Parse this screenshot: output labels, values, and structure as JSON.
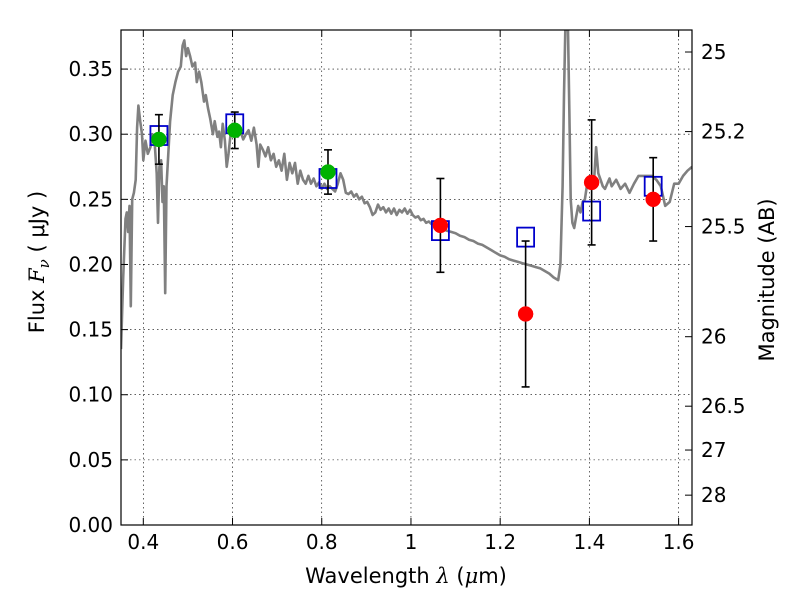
{
  "chart_data": {
    "type": "scatter",
    "title": "",
    "xlabel": {
      "prefix": "Wavelength ",
      "symbol": "λ",
      "unit_open": " (",
      "unit_mu": "μ",
      "unit_rest": "m)"
    },
    "ylabel": {
      "prefix": "Flux ",
      "symbol": "F",
      "subscript": "ν",
      "unit": " (  μJy )"
    },
    "ylabel_right": "Magnitude (AB)",
    "xlim": [
      0.35,
      1.63
    ],
    "ylim": [
      0.0,
      0.38
    ],
    "grid": true,
    "x_ticks": [
      {
        "value": 0.4,
        "label": "0.4"
      },
      {
        "value": 0.6,
        "label": "0.6"
      },
      {
        "value": 0.8,
        "label": "0.8"
      },
      {
        "value": 1.0,
        "label": "1"
      },
      {
        "value": 1.2,
        "label": "1.2"
      },
      {
        "value": 1.4,
        "label": "1.4"
      },
      {
        "value": 1.6,
        "label": "1.6"
      }
    ],
    "y_ticks": [
      {
        "value": 0.0,
        "label": "0.00"
      },
      {
        "value": 0.05,
        "label": "0.05"
      },
      {
        "value": 0.1,
        "label": "0.10"
      },
      {
        "value": 0.15,
        "label": "0.15"
      },
      {
        "value": 0.2,
        "label": "0.20"
      },
      {
        "value": 0.25,
        "label": "0.25"
      },
      {
        "value": 0.3,
        "label": "0.30"
      },
      {
        "value": 0.35,
        "label": "0.35"
      }
    ],
    "right_ticks": [
      {
        "mag": 25.0,
        "label": "25"
      },
      {
        "mag": 25.2,
        "label": "25.2"
      },
      {
        "mag": 25.5,
        "label": "25.5"
      },
      {
        "mag": 26.0,
        "label": "26"
      },
      {
        "mag": 26.5,
        "label": "26.5"
      },
      {
        "mag": 27.0,
        "label": "27"
      },
      {
        "mag": 28.0,
        "label": "28"
      }
    ],
    "model_spectrum": {
      "color": "#808080",
      "points": [
        [
          0.35,
          0.135
        ],
        [
          0.355,
          0.19
        ],
        [
          0.36,
          0.235
        ],
        [
          0.363,
          0.24
        ],
        [
          0.366,
          0.225
        ],
        [
          0.369,
          0.245
        ],
        [
          0.372,
          0.168
        ],
        [
          0.375,
          0.25
        ],
        [
          0.379,
          0.255
        ],
        [
          0.383,
          0.265
        ],
        [
          0.386,
          0.305
        ],
        [
          0.389,
          0.322
        ],
        [
          0.393,
          0.31
        ],
        [
          0.397,
          0.3
        ],
        [
          0.4,
          0.28
        ],
        [
          0.405,
          0.295
        ],
        [
          0.41,
          0.285
        ],
        [
          0.416,
          0.29
        ],
        [
          0.42,
          0.3
        ],
        [
          0.425,
          0.295
        ],
        [
          0.43,
          0.27
        ],
        [
          0.433,
          0.232
        ],
        [
          0.436,
          0.275
        ],
        [
          0.44,
          0.28
        ],
        [
          0.443,
          0.248
        ],
        [
          0.446,
          0.26
        ],
        [
          0.449,
          0.178
        ],
        [
          0.452,
          0.26
        ],
        [
          0.456,
          0.285
        ],
        [
          0.46,
          0.31
        ],
        [
          0.466,
          0.33
        ],
        [
          0.472,
          0.34
        ],
        [
          0.478,
          0.348
        ],
        [
          0.484,
          0.352
        ],
        [
          0.488,
          0.368
        ],
        [
          0.492,
          0.372
        ],
        [
          0.496,
          0.36
        ],
        [
          0.5,
          0.366
        ],
        [
          0.505,
          0.36
        ],
        [
          0.51,
          0.352
        ],
        [
          0.516,
          0.355
        ],
        [
          0.52,
          0.34
        ],
        [
          0.525,
          0.348
        ],
        [
          0.53,
          0.34
        ],
        [
          0.536,
          0.325
        ],
        [
          0.54,
          0.33
        ],
        [
          0.545,
          0.32
        ],
        [
          0.55,
          0.312
        ],
        [
          0.556,
          0.3
        ],
        [
          0.56,
          0.31
        ],
        [
          0.566,
          0.298
        ],
        [
          0.57,
          0.302
        ],
        [
          0.574,
          0.29
        ],
        [
          0.578,
          0.308
        ],
        [
          0.583,
          0.295
        ],
        [
          0.587,
          0.275
        ],
        [
          0.591,
          0.285
        ],
        [
          0.595,
          0.298
        ],
        [
          0.6,
          0.308
        ],
        [
          0.606,
          0.304
        ],
        [
          0.612,
          0.298
        ],
        [
          0.618,
          0.302
        ],
        [
          0.624,
          0.296
        ],
        [
          0.63,
          0.3
        ],
        [
          0.636,
          0.303
        ],
        [
          0.642,
          0.295
        ],
        [
          0.648,
          0.305
        ],
        [
          0.654,
          0.292
        ],
        [
          0.658,
          0.275
        ],
        [
          0.662,
          0.292
        ],
        [
          0.668,
          0.288
        ],
        [
          0.674,
          0.283
        ],
        [
          0.68,
          0.29
        ],
        [
          0.686,
          0.28
        ],
        [
          0.692,
          0.285
        ],
        [
          0.698,
          0.275
        ],
        [
          0.704,
          0.28
        ],
        [
          0.71,
          0.272
        ],
        [
          0.716,
          0.285
        ],
        [
          0.722,
          0.265
        ],
        [
          0.728,
          0.278
        ],
        [
          0.734,
          0.27
        ],
        [
          0.74,
          0.278
        ],
        [
          0.746,
          0.262
        ],
        [
          0.752,
          0.272
        ],
        [
          0.758,
          0.265
        ],
        [
          0.764,
          0.262
        ],
        [
          0.77,
          0.268
        ],
        [
          0.776,
          0.262
        ],
        [
          0.782,
          0.266
        ],
        [
          0.788,
          0.26
        ],
        [
          0.794,
          0.263
        ],
        [
          0.8,
          0.258
        ],
        [
          0.806,
          0.262
        ],
        [
          0.812,
          0.258
        ],
        [
          0.818,
          0.26
        ],
        [
          0.824,
          0.258
        ],
        [
          0.83,
          0.256
        ],
        [
          0.836,
          0.262
        ],
        [
          0.842,
          0.27
        ],
        [
          0.848,
          0.265
        ],
        [
          0.854,
          0.255
        ],
        [
          0.86,
          0.254
        ],
        [
          0.866,
          0.256
        ],
        [
          0.872,
          0.252
        ],
        [
          0.878,
          0.254
        ],
        [
          0.884,
          0.25
        ],
        [
          0.89,
          0.252
        ],
        [
          0.896,
          0.247
        ],
        [
          0.902,
          0.248
        ],
        [
          0.908,
          0.244
        ],
        [
          0.914,
          0.238
        ],
        [
          0.92,
          0.24
        ],
        [
          0.926,
          0.246
        ],
        [
          0.932,
          0.242
        ],
        [
          0.938,
          0.244
        ],
        [
          0.944,
          0.24
        ],
        [
          0.95,
          0.243
        ],
        [
          0.956,
          0.239
        ],
        [
          0.962,
          0.243
        ],
        [
          0.968,
          0.238
        ],
        [
          0.974,
          0.242
        ],
        [
          0.98,
          0.24
        ],
        [
          0.986,
          0.243
        ],
        [
          0.992,
          0.239
        ],
        [
          0.998,
          0.242
        ],
        [
          1.004,
          0.238
        ],
        [
          1.01,
          0.236
        ],
        [
          1.016,
          0.237
        ],
        [
          1.022,
          0.234
        ],
        [
          1.028,
          0.235
        ],
        [
          1.034,
          0.232
        ],
        [
          1.04,
          0.233
        ],
        [
          1.046,
          0.231
        ],
        [
          1.052,
          0.232
        ],
        [
          1.06,
          0.229
        ],
        [
          1.07,
          0.228
        ],
        [
          1.08,
          0.226
        ],
        [
          1.09,
          0.225
        ],
        [
          1.1,
          0.224
        ],
        [
          1.11,
          0.222
        ],
        [
          1.12,
          0.221
        ],
        [
          1.13,
          0.219
        ],
        [
          1.14,
          0.218
        ],
        [
          1.15,
          0.216
        ],
        [
          1.16,
          0.215
        ],
        [
          1.17,
          0.213
        ],
        [
          1.18,
          0.211
        ],
        [
          1.19,
          0.209
        ],
        [
          1.2,
          0.207
        ],
        [
          1.21,
          0.206
        ],
        [
          1.22,
          0.204
        ],
        [
          1.23,
          0.203
        ],
        [
          1.24,
          0.202
        ],
        [
          1.25,
          0.201
        ],
        [
          1.26,
          0.2
        ],
        [
          1.27,
          0.199
        ],
        [
          1.28,
          0.198
        ],
        [
          1.29,
          0.197
        ],
        [
          1.3,
          0.195
        ],
        [
          1.31,
          0.193
        ],
        [
          1.32,
          0.19
        ],
        [
          1.33,
          0.188
        ],
        [
          1.335,
          0.2
        ],
        [
          1.34,
          0.26
        ],
        [
          1.343,
          0.33
        ],
        [
          1.346,
          0.38
        ],
        [
          1.352,
          0.38
        ],
        [
          1.355,
          0.32
        ],
        [
          1.358,
          0.25
        ],
        [
          1.362,
          0.232
        ],
        [
          1.366,
          0.228
        ],
        [
          1.37,
          0.236
        ],
        [
          1.375,
          0.245
        ],
        [
          1.38,
          0.24
        ],
        [
          1.385,
          0.248
        ],
        [
          1.39,
          0.25
        ],
        [
          1.395,
          0.262
        ],
        [
          1.4,
          0.263
        ],
        [
          1.405,
          0.258
        ],
        [
          1.41,
          0.262
        ],
        [
          1.415,
          0.29
        ],
        [
          1.42,
          0.27
        ],
        [
          1.425,
          0.265
        ],
        [
          1.43,
          0.26
        ],
        [
          1.435,
          0.258
        ],
        [
          1.44,
          0.262
        ],
        [
          1.445,
          0.266
        ],
        [
          1.45,
          0.26
        ],
        [
          1.46,
          0.265
        ],
        [
          1.47,
          0.258
        ],
        [
          1.48,
          0.262
        ],
        [
          1.49,
          0.255
        ],
        [
          1.5,
          0.262
        ],
        [
          1.51,
          0.268
        ],
        [
          1.52,
          0.268
        ],
        [
          1.53,
          0.268
        ],
        [
          1.54,
          0.268
        ],
        [
          1.55,
          0.265
        ],
        [
          1.56,
          0.26
        ],
        [
          1.57,
          0.245
        ],
        [
          1.58,
          0.248
        ],
        [
          1.59,
          0.262
        ],
        [
          1.6,
          0.262
        ],
        [
          1.61,
          0.268
        ],
        [
          1.62,
          0.272
        ],
        [
          1.63,
          0.275
        ]
      ]
    },
    "model_photometry": {
      "color": "#0000cc",
      "marker": "open-square",
      "points": [
        [
          0.435,
          0.299
        ],
        [
          0.605,
          0.308
        ],
        [
          0.814,
          0.266
        ],
        [
          1.066,
          0.226
        ],
        [
          1.257,
          0.221
        ],
        [
          1.405,
          0.241
        ],
        [
          1.543,
          0.26
        ]
      ]
    },
    "observed": [
      {
        "x": 0.435,
        "y": 0.296,
        "err": 0.019,
        "color": "#00b200"
      },
      {
        "x": 0.605,
        "y": 0.303,
        "err": 0.014,
        "color": "#00b200"
      },
      {
        "x": 0.814,
        "y": 0.271,
        "err": 0.017,
        "color": "#00b200"
      },
      {
        "x": 1.066,
        "y": 0.23,
        "err": 0.036,
        "color": "#ff0000"
      },
      {
        "x": 1.257,
        "y": 0.162,
        "err": 0.056,
        "color": "#ff0000"
      },
      {
        "x": 1.405,
        "y": 0.263,
        "err": 0.048,
        "color": "#ff0000"
      },
      {
        "x": 1.543,
        "y": 0.25,
        "err": 0.032,
        "color": "#ff0000"
      }
    ]
  }
}
